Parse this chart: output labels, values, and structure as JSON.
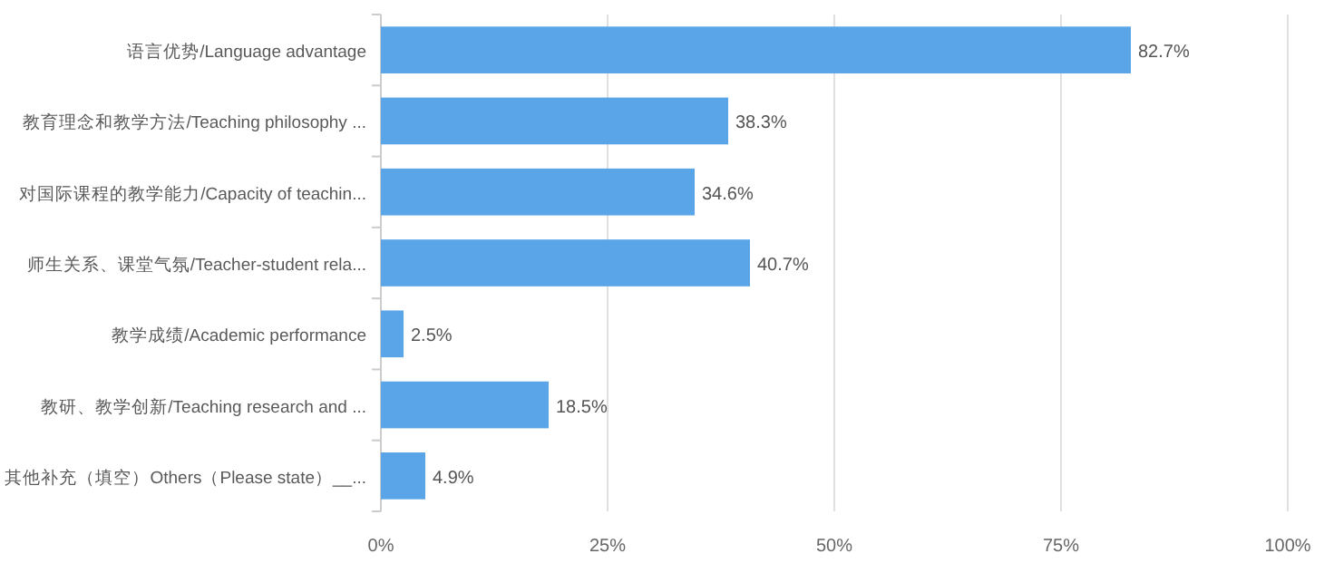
{
  "chart_data": {
    "type": "bar",
    "orientation": "horizontal",
    "categories": [
      "语言优势/Language advantage",
      "教育理念和教学方法/Teaching philosophy ...",
      "对国际课程的教学能力/Capacity of teachin...",
      "师生关系、课堂气氛/Teacher-student rela...",
      "教学成绩/Academic performance",
      "教研、教学创新/Teaching research and ...",
      "其他补充（填空）Others（Please state）__..."
    ],
    "values": [
      82.7,
      38.3,
      34.6,
      40.7,
      2.5,
      18.5,
      4.9
    ],
    "value_labels": [
      "82.7%",
      "38.3%",
      "34.6%",
      "40.7%",
      "2.5%",
      "18.5%",
      "4.9%"
    ],
    "color": "#5aa5e8",
    "xlim": [
      0,
      100
    ],
    "xticks": [
      {
        "value": 0,
        "label": "0%"
      },
      {
        "value": 25,
        "label": "25%"
      },
      {
        "value": 50,
        "label": "50%"
      },
      {
        "value": 75,
        "label": "75%"
      },
      {
        "value": 100,
        "label": "100%"
      }
    ],
    "grid": "x"
  }
}
